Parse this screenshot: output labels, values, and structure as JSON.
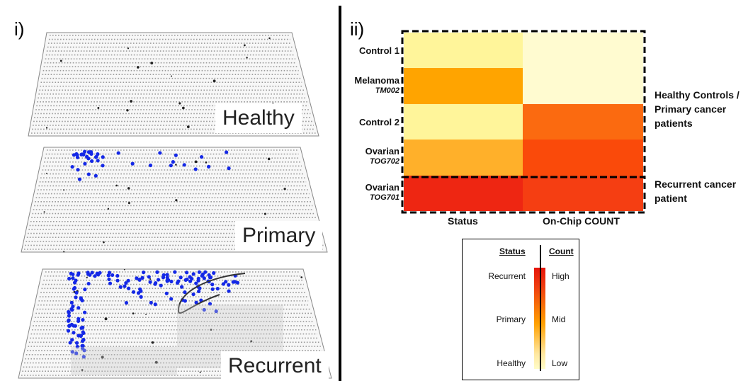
{
  "panels": {
    "left_label": "i)",
    "right_label": "ii)"
  },
  "chips": [
    {
      "label": "Healthy",
      "colored_dots": 0
    },
    {
      "label": "Primary",
      "colored_dots": 40
    },
    {
      "label": "Recurrent",
      "colored_dots": 160
    }
  ],
  "colors": {
    "dot_blue": "#1428e6",
    "scale_low": "#fffcc8",
    "scale_mid": "#ffa000",
    "scale_high": "#e6140a"
  },
  "chart_data": {
    "type": "heatmap",
    "rows": [
      {
        "name": "Control 1",
        "sub": ""
      },
      {
        "name": "Melanoma",
        "sub": "TM002"
      },
      {
        "name": "Control 2",
        "sub": ""
      },
      {
        "name": "Ovarian",
        "sub": "TOG702"
      },
      {
        "name": "Ovarian",
        "sub": "TOG701"
      }
    ],
    "columns": [
      "Status",
      "On-Chip COUNT"
    ],
    "cells": [
      [
        "#fff59a",
        "#fffbd0"
      ],
      [
        "#ffa400",
        "#fffbd0"
      ],
      [
        "#fff59a",
        "#fb6a10"
      ],
      [
        "#ffb02a",
        "#fa4a0a"
      ],
      [
        "#ee2612",
        "#f53e12"
      ]
    ],
    "groups": [
      {
        "label_lines": [
          "Healthy Controls /",
          "Primary cancer",
          "patients"
        ]
      },
      {
        "label_lines": [
          "Recurrent cancer",
          "patient"
        ]
      }
    ]
  },
  "legend": {
    "status_header": "Status",
    "count_header": "Count",
    "status_levels": [
      "Recurrent",
      "Primary",
      "Healthy"
    ],
    "count_levels": [
      "High",
      "Mid",
      "Low"
    ]
  }
}
